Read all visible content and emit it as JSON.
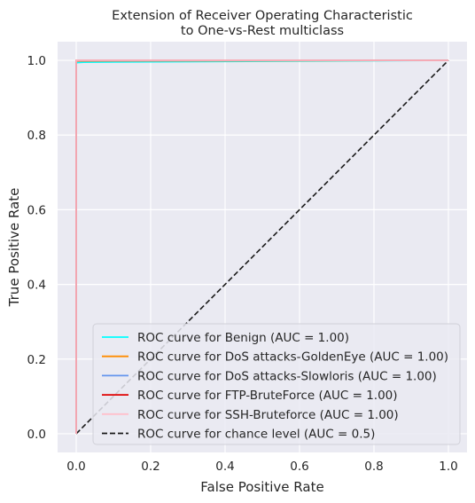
{
  "chart_data": {
    "type": "line",
    "title": "Extension of Receiver Operating Characteristic\nto One-vs-Rest multiclass",
    "xlabel": "False Positive Rate",
    "ylabel": "True Positive Rate",
    "xlim": [
      -0.05,
      1.05
    ],
    "ylim": [
      -0.05,
      1.05
    ],
    "xticks": [
      "0.0",
      "0.2",
      "0.4",
      "0.6",
      "0.8",
      "1.0"
    ],
    "yticks": [
      "0.0",
      "0.2",
      "0.4",
      "0.6",
      "0.8",
      "1.0"
    ],
    "grid": true,
    "legend_position": "lower-right",
    "series": [
      {
        "name": "ROC curve for Benign (AUC = 1.00)",
        "color": "#00ffff",
        "dash": false,
        "x": [
          0.0,
          0.0,
          0.005,
          0.02,
          1.0
        ],
        "y": [
          0.0,
          0.993,
          0.994,
          0.995,
          1.0
        ]
      },
      {
        "name": "ROC curve for DoS attacks-GoldenEye (AUC = 1.00)",
        "color": "#ff8c00",
        "dash": false,
        "x": [
          0.0,
          0.0,
          1.0
        ],
        "y": [
          0.0,
          0.998,
          1.0
        ]
      },
      {
        "name": "ROC curve for DoS attacks-Slowloris (AUC = 1.00)",
        "color": "#6495ed",
        "dash": false,
        "x": [
          0.0,
          0.0,
          1.0
        ],
        "y": [
          0.0,
          0.999,
          1.0
        ]
      },
      {
        "name": "ROC curve for FTP-BruteForce (AUC = 1.00)",
        "color": "#e00000",
        "dash": false,
        "x": [
          0.0,
          0.0,
          1.0
        ],
        "y": [
          0.0,
          1.0,
          1.0
        ]
      },
      {
        "name": "ROC curve for SSH-Bruteforce (AUC = 1.00)",
        "color": "#ffc0cb",
        "dash": false,
        "x": [
          0.0,
          0.0,
          1.0
        ],
        "y": [
          0.0,
          1.0,
          1.0
        ]
      },
      {
        "name": "ROC curve for chance level (AUC = 0.5)",
        "color": "#1a1a1a",
        "dash": true,
        "x": [
          0.0,
          1.0
        ],
        "y": [
          0.0,
          1.0
        ]
      }
    ]
  }
}
